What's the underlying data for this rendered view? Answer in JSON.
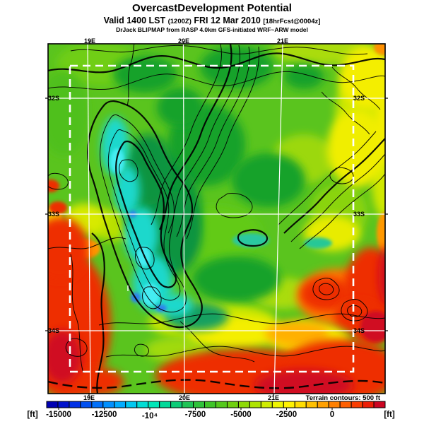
{
  "header": {
    "title": "OvercastDevelopment Potential",
    "valid": {
      "prefix": "Valid 1400 LST",
      "zulu": "(1200Z)",
      "date": "FRI 12 Mar 2010",
      "fcst": "[18hrFcst@0004z]"
    },
    "model_line": "DrJack BLIPMAP from RASP 4.0km GFS-initiated WRF~ARW model"
  },
  "map": {
    "lon_labels": [
      "19E",
      "20E",
      "21E"
    ],
    "lat_labels": [
      "32S",
      "33S",
      "34S"
    ],
    "note": "Terrain contours: 500 ft",
    "grid_color": "#ffffff",
    "domain_box_color": "#ffffff"
  },
  "colorbar": {
    "unit_left": "[ft]",
    "unit_right": "[ft]",
    "tick_labels": [
      "-15000",
      "-12500",
      "-10⁴",
      "-7500",
      "-5000",
      "-2500",
      "0"
    ],
    "colors": [
      "#0000b3",
      "#0012cc",
      "#0030e6",
      "#0050f0",
      "#0070fa",
      "#0090ff",
      "#00acff",
      "#00c8f0",
      "#00ddd5",
      "#00e6b8",
      "#00d999",
      "#0ccc77",
      "#1fc455",
      "#2fc23a",
      "#3fc428",
      "#55c81c",
      "#70d010",
      "#8eda08",
      "#aee300",
      "#cfec00",
      "#eef500",
      "#fff200",
      "#ffdd00",
      "#ffc000",
      "#ffa000",
      "#ff8000",
      "#ff5f00",
      "#f93d00",
      "#ed1e05",
      "#cc0522"
    ]
  }
}
